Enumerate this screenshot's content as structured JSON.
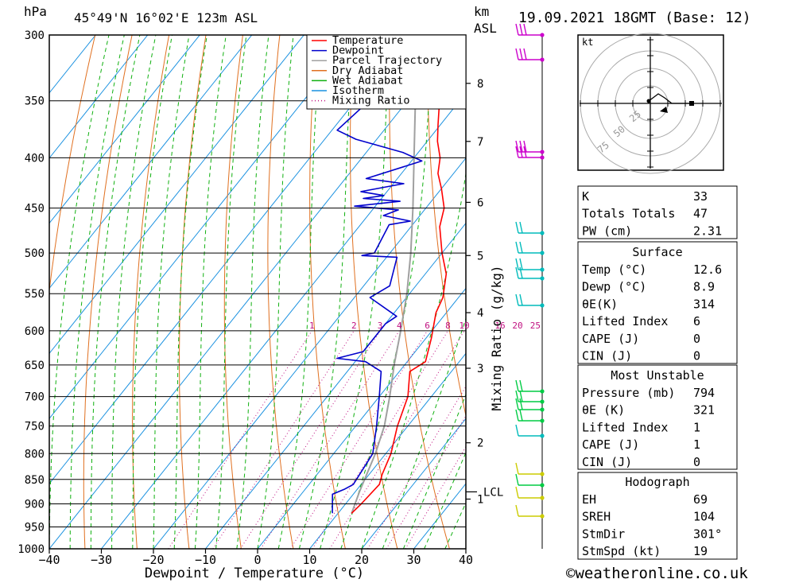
{
  "header": {
    "unit_hpa": "hPa",
    "location": "45°49'N  16°02'E  123m  ASL",
    "unit_km": "km",
    "unit_asl": "ASL",
    "datetime": "19.09.2021  18GMT  (Base: 12)"
  },
  "footer": {
    "credit": "©weatheronline.co.uk"
  },
  "chart_data": {
    "type": "line",
    "subtype": "skew-t log-p",
    "title": "45°49'N 16°02'E 123m ASL  19.09.2021 18GMT (Base: 12)",
    "xlabel": "Dewpoint / Temperature (°C)",
    "ylabel": "hPa",
    "secondary_ylabel": "Mixing Ratio (g/kg)",
    "xlim": [
      -40,
      40
    ],
    "ylim": [
      1000,
      300
    ],
    "x_ticks": [
      "−40",
      "−30",
      "−20",
      "−10",
      "0",
      "10",
      "20",
      "30",
      "40"
    ],
    "x_tick_values": [
      -40,
      -30,
      -20,
      -10,
      0,
      10,
      20,
      30,
      40
    ],
    "pressure_levels": [
      1000,
      950,
      900,
      850,
      800,
      750,
      700,
      650,
      600,
      550,
      500,
      450,
      400,
      350,
      300
    ],
    "height_km_ticks": [
      "1",
      "2",
      "3",
      "4",
      "5",
      "6",
      "7",
      "8"
    ],
    "height_km_pressures": [
      890,
      780,
      655,
      575,
      503,
      444,
      385,
      336
    ],
    "lcl": {
      "label": "LCL",
      "pressure": 875
    },
    "mixing_ratio_labels": [
      "1",
      "2",
      "3",
      "4",
      "6",
      "8",
      "10",
      "16",
      "20",
      "25"
    ],
    "mixing_ratio_values": [
      1,
      2,
      3,
      4,
      6,
      8,
      10,
      16,
      20,
      25
    ],
    "legend": [
      {
        "name": "Temperature",
        "color": "#ff0000",
        "style": "solid"
      },
      {
        "name": "Dewpoint",
        "color": "#0000cc",
        "style": "solid"
      },
      {
        "name": "Parcel Trajectory",
        "color": "#a0a0a0",
        "style": "solid"
      },
      {
        "name": "Dry Adiabat",
        "color": "#e07020",
        "style": "solid"
      },
      {
        "name": "Wet Adiabat",
        "color": "#10b010",
        "style": "solid"
      },
      {
        "name": "Isotherm",
        "color": "#1890e0",
        "style": "solid"
      },
      {
        "name": "Mixing Ratio",
        "color": "#c01080",
        "style": "dotted"
      }
    ],
    "series": [
      {
        "name": "Temperature",
        "color": "#ff0000",
        "points": [
          [
            12.6,
            920
          ],
          [
            13.0,
            900
          ],
          [
            13.5,
            860
          ],
          [
            12.5,
            840
          ],
          [
            11.0,
            800
          ],
          [
            8.0,
            750
          ],
          [
            5.5,
            700
          ],
          [
            2.0,
            660
          ],
          [
            3.5,
            645
          ],
          [
            1.0,
            610
          ],
          [
            -2.0,
            575
          ],
          [
            -3.0,
            555
          ],
          [
            -6.0,
            525
          ],
          [
            -10.0,
            500
          ],
          [
            -14.5,
            470
          ],
          [
            -16.5,
            450
          ],
          [
            -20.0,
            430
          ],
          [
            -23.0,
            415
          ],
          [
            -25.0,
            400
          ],
          [
            -28.0,
            385
          ],
          [
            -30.5,
            370
          ],
          [
            -33.0,
            355
          ],
          [
            -35.0,
            345
          ],
          [
            -38.5,
            330
          ],
          [
            -42.0,
            315
          ],
          [
            -42.5,
            310
          ],
          [
            -44.5,
            300
          ]
        ]
      },
      {
        "name": "Dewpoint",
        "color": "#0000cc",
        "points": [
          [
            8.9,
            920
          ],
          [
            6.0,
            880
          ],
          [
            7.5,
            870
          ],
          [
            8.5,
            860
          ],
          [
            7.5,
            800
          ],
          [
            4.0,
            750
          ],
          [
            0.0,
            700
          ],
          [
            -3.5,
            660
          ],
          [
            -8.0,
            645
          ],
          [
            -14.0,
            640
          ],
          [
            -10.0,
            630
          ],
          [
            -10.0,
            590
          ],
          [
            -9.0,
            580
          ],
          [
            -17.0,
            555
          ],
          [
            -15.0,
            540
          ],
          [
            -18.0,
            505
          ],
          [
            -25.0,
            503
          ],
          [
            -23.0,
            500
          ],
          [
            -24.5,
            468
          ],
          [
            -21.0,
            464
          ],
          [
            -27.0,
            458
          ],
          [
            -25.0,
            452
          ],
          [
            -34.0,
            448
          ],
          [
            -26.0,
            443
          ],
          [
            -33.5,
            440
          ],
          [
            -30.0,
            437
          ],
          [
            -35.0,
            433
          ],
          [
            -28.0,
            425
          ],
          [
            -36.0,
            420
          ],
          [
            -28.0,
            403
          ],
          [
            -33.0,
            395
          ],
          [
            -44.0,
            383
          ],
          [
            -49.0,
            375
          ],
          [
            -46.0,
            330
          ],
          [
            -48.0,
            318
          ],
          [
            -52.0,
            314
          ],
          [
            -50.0,
            300
          ]
        ]
      },
      {
        "name": "Parcel Trajectory",
        "color": "#a0a0a0",
        "points": [
          [
            12.6,
            920
          ],
          [
            10.8,
            875
          ],
          [
            8.0,
            800
          ],
          [
            5.5,
            750
          ],
          [
            2.0,
            700
          ],
          [
            -2.0,
            650
          ],
          [
            -6.0,
            600
          ],
          [
            -10.5,
            550
          ],
          [
            -16.0,
            500
          ],
          [
            -22.5,
            450
          ],
          [
            -30.0,
            400
          ],
          [
            -38.5,
            350
          ],
          [
            -47.0,
            300
          ]
        ]
      }
    ]
  },
  "winds": {
    "unit": "kt",
    "rings": [
      "25",
      "50",
      "75"
    ],
    "colors": [
      "#cc00cc",
      "#00bbbb",
      "#00cc44",
      "#cccc00"
    ]
  },
  "indices": {
    "rows": [
      {
        "label": "K",
        "value": "33"
      },
      {
        "label": "Totals Totals",
        "value": "47"
      },
      {
        "label": "PW (cm)",
        "value": "2.31"
      }
    ],
    "surface_title": "Surface",
    "surface": [
      {
        "label": "Temp (°C)",
        "value": "12.6"
      },
      {
        "label": "Dewp (°C)",
        "value": "8.9"
      },
      {
        "label": "θE(K)",
        "value": "314"
      },
      {
        "label": "Lifted Index",
        "value": "6"
      },
      {
        "label": "CAPE (J)",
        "value": "0"
      },
      {
        "label": "CIN (J)",
        "value": "0"
      }
    ],
    "mu_title": "Most Unstable",
    "most_unstable": [
      {
        "label": "Pressure (mb)",
        "value": "794"
      },
      {
        "label": "θE (K)",
        "value": "321"
      },
      {
        "label": "Lifted Index",
        "value": "1"
      },
      {
        "label": "CAPE (J)",
        "value": "1"
      },
      {
        "label": "CIN (J)",
        "value": "0"
      }
    ],
    "hodo_title": "Hodograph",
    "hodograph": [
      {
        "label": "EH",
        "value": "69"
      },
      {
        "label": "SREH",
        "value": "104"
      },
      {
        "label": "StmDir",
        "value": "301°"
      },
      {
        "label": "StmSpd (kt)",
        "value": "19"
      }
    ]
  }
}
